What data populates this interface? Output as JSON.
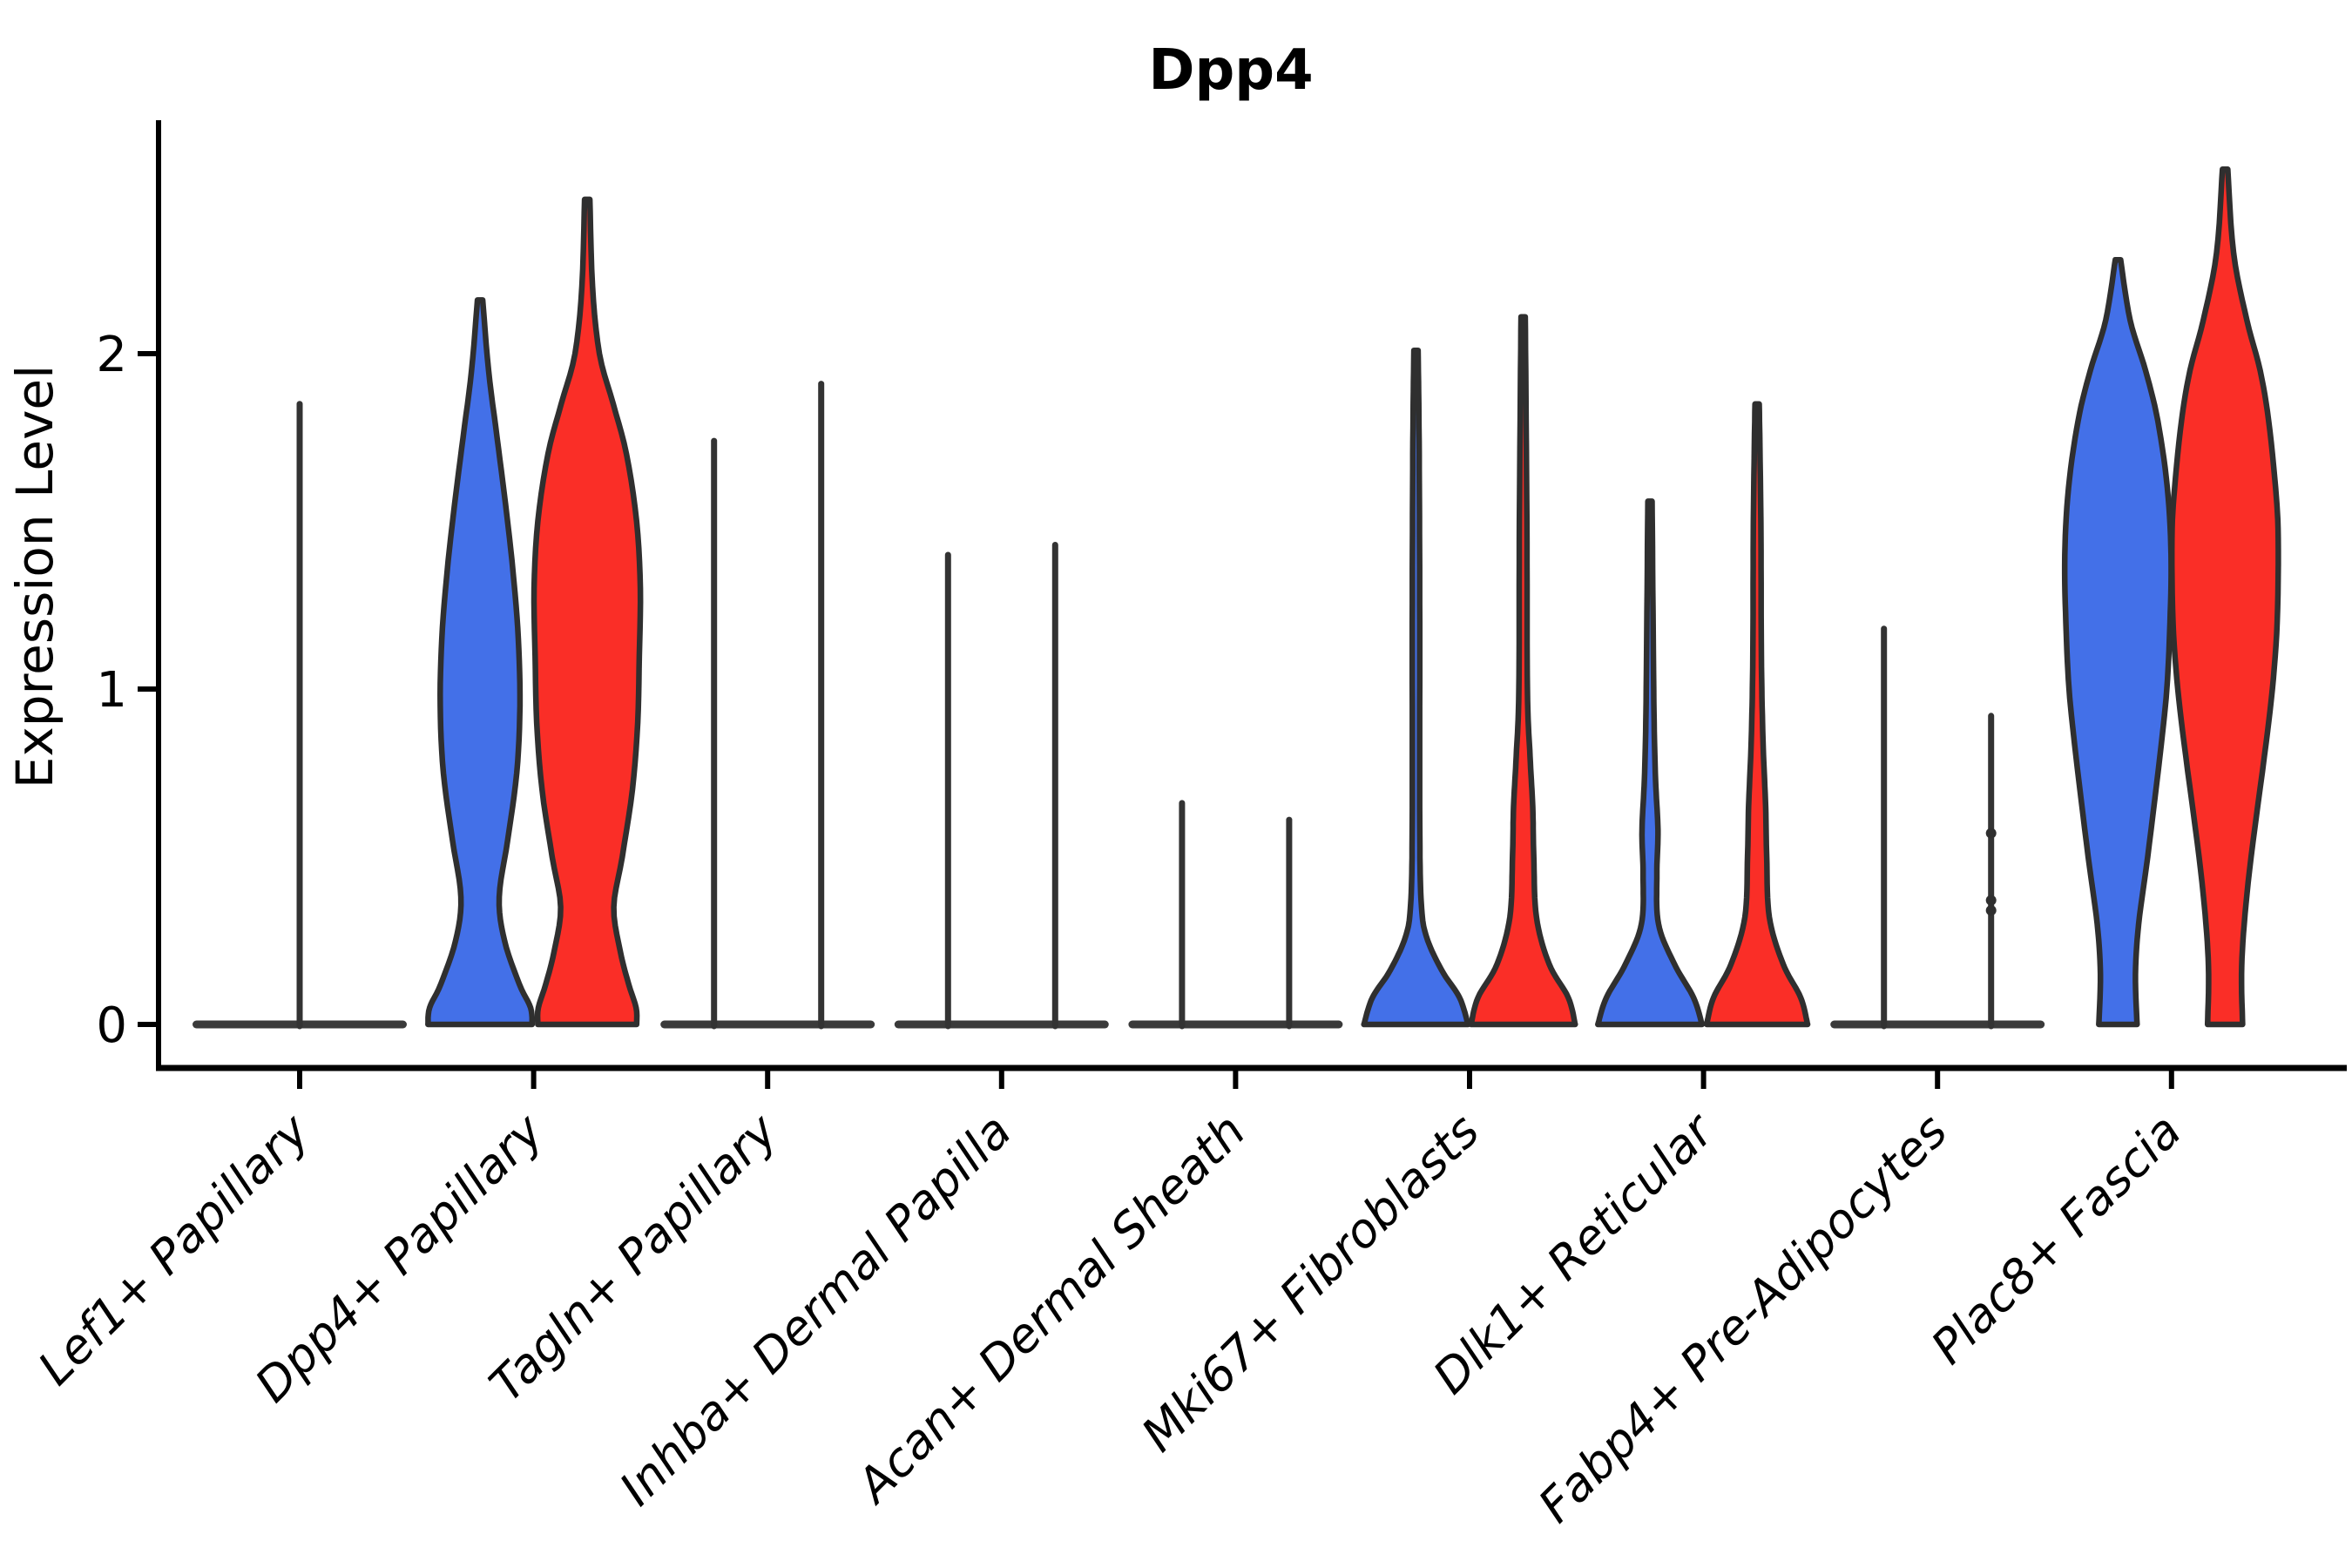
{
  "chart_data": {
    "type": "violin",
    "title": "Dpp4",
    "xlabel": "",
    "ylabel": "Expression Level",
    "ylim": [
      -0.13,
      2.7
    ],
    "grid": false,
    "legend": "none",
    "yticks": [
      {
        "value": 0,
        "label": "0"
      },
      {
        "value": 1,
        "label": "1"
      },
      {
        "value": 2,
        "label": "2"
      }
    ],
    "categories": [
      "Lef1+ Papillary",
      "Dpp4+ Papillary",
      "Tagln+ Papillary",
      "Inhba+ Dermal Papilla",
      "Acan+ Dermal Sheath",
      "Mki67+ Fibroblasts",
      "Dlk1+ Reticular",
      "Fabp4+ Pre-Adipocytes",
      "Plac8+ Fascia"
    ],
    "series_colors": {
      "blue": "#4370E8",
      "red": "#FA2E27",
      "outline": "#2F2F2F",
      "spike": "#333333",
      "pancake": "#3a3a3a"
    },
    "description": "Split violin plot of Dpp4 expression per fibroblast cluster; left violin of each pair is blue, right is red. Clusters with expression concentrated at 0 collapse to a flat line with a thin spike to the maximum expressing cell.",
    "groups": [
      {
        "category": "Lef1+ Papillary",
        "pancake": true,
        "violins": [
          {
            "color": "spike",
            "type": "spike",
            "position": "center",
            "max": 1.85
          }
        ]
      },
      {
        "category": "Dpp4+ Papillary",
        "pancake": false,
        "violins": [
          {
            "color": "blue",
            "type": "shaped",
            "position": "left",
            "max": 2.16,
            "profile": [
              [
                0,
                0.98
              ],
              [
                0.05,
                0.95
              ],
              [
                0.12,
                0.74
              ],
              [
                0.25,
                0.46
              ],
              [
                0.38,
                0.36
              ],
              [
                0.55,
                0.52
              ],
              [
                0.75,
                0.69
              ],
              [
                0.95,
                0.75
              ],
              [
                1.15,
                0.72
              ],
              [
                1.35,
                0.62
              ],
              [
                1.55,
                0.48
              ],
              [
                1.75,
                0.32
              ],
              [
                1.95,
                0.16
              ],
              [
                2.16,
                0.05
              ]
            ]
          },
          {
            "color": "red",
            "type": "shaped",
            "position": "right",
            "max": 2.46,
            "profile": [
              [
                0,
                0.93
              ],
              [
                0.05,
                0.92
              ],
              [
                0.12,
                0.78
              ],
              [
                0.22,
                0.62
              ],
              [
                0.35,
                0.5
              ],
              [
                0.5,
                0.66
              ],
              [
                0.7,
                0.85
              ],
              [
                0.9,
                0.95
              ],
              [
                1.1,
                0.98
              ],
              [
                1.3,
                1.0
              ],
              [
                1.5,
                0.93
              ],
              [
                1.7,
                0.74
              ],
              [
                1.85,
                0.49
              ],
              [
                2.0,
                0.23
              ],
              [
                2.2,
                0.1
              ],
              [
                2.46,
                0.05
              ]
            ]
          }
        ]
      },
      {
        "category": "Tagln+ Papillary",
        "pancake": true,
        "violins": [
          {
            "color": "spike",
            "type": "spike",
            "position": "left",
            "max": 1.74
          },
          {
            "color": "spike",
            "type": "spike",
            "position": "right",
            "max": 1.91
          }
        ]
      },
      {
        "category": "Inhba+ Dermal Papilla",
        "pancake": true,
        "violins": [
          {
            "color": "spike",
            "type": "spike",
            "position": "left",
            "max": 1.4
          },
          {
            "color": "spike",
            "type": "spike",
            "position": "right",
            "max": 1.43
          }
        ]
      },
      {
        "category": "Acan+ Dermal Sheath",
        "pancake": true,
        "violins": [
          {
            "color": "spike",
            "type": "spike",
            "position": "left",
            "max": 0.66
          },
          {
            "color": "spike",
            "type": "spike",
            "position": "right",
            "max": 0.61
          }
        ]
      },
      {
        "category": "Mki67+ Fibroblasts",
        "pancake": false,
        "violins": [
          {
            "color": "blue",
            "type": "shaped",
            "position": "left",
            "max": 2.01,
            "profile": [
              [
                0,
                0.98
              ],
              [
                0.08,
                0.82
              ],
              [
                0.16,
                0.49
              ],
              [
                0.26,
                0.2
              ],
              [
                0.36,
                0.1
              ],
              [
                0.6,
                0.07
              ],
              [
                1.2,
                0.07
              ],
              [
                1.7,
                0.06
              ],
              [
                2.01,
                0.04
              ]
            ]
          },
          {
            "color": "red",
            "type": "shaped",
            "position": "right",
            "max": 2.11,
            "profile": [
              [
                0,
                0.98
              ],
              [
                0.08,
                0.85
              ],
              [
                0.18,
                0.49
              ],
              [
                0.32,
                0.25
              ],
              [
                0.5,
                0.2
              ],
              [
                0.65,
                0.18
              ],
              [
                0.8,
                0.13
              ],
              [
                1.0,
                0.08
              ],
              [
                1.5,
                0.07
              ],
              [
                2.11,
                0.04
              ]
            ]
          }
        ]
      },
      {
        "category": "Dlk1+ Reticular",
        "pancake": false,
        "violins": [
          {
            "color": "blue",
            "type": "shaped",
            "position": "left",
            "max": 1.56,
            "profile": [
              [
                0,
                0.98
              ],
              [
                0.08,
                0.82
              ],
              [
                0.18,
                0.46
              ],
              [
                0.3,
                0.16
              ],
              [
                0.45,
                0.13
              ],
              [
                0.58,
                0.15
              ],
              [
                0.75,
                0.1
              ],
              [
                1.0,
                0.07
              ],
              [
                1.56,
                0.04
              ]
            ]
          },
          {
            "color": "red",
            "type": "shaped",
            "position": "right",
            "max": 1.85,
            "profile": [
              [
                0,
                0.95
              ],
              [
                0.08,
                0.82
              ],
              [
                0.18,
                0.49
              ],
              [
                0.32,
                0.23
              ],
              [
                0.5,
                0.18
              ],
              [
                0.65,
                0.16
              ],
              [
                0.85,
                0.11
              ],
              [
                1.1,
                0.08
              ],
              [
                1.5,
                0.07
              ],
              [
                1.85,
                0.04
              ]
            ]
          }
        ]
      },
      {
        "category": "Fabp4+ Pre-Adipocytes",
        "pancake": true,
        "violins": [
          {
            "color": "spike",
            "type": "spike",
            "position": "left",
            "max": 1.18
          },
          {
            "color": "spike",
            "type": "spike",
            "position": "right",
            "max": 0.92,
            "dots": [
              0.57,
              0.37,
              0.34
            ]
          }
        ]
      },
      {
        "category": "Plac8+ Fascia",
        "pancake": false,
        "violins": [
          {
            "color": "blue",
            "type": "shaped",
            "position": "left",
            "max": 2.28,
            "profile": [
              [
                0,
                0.36
              ],
              [
                0.15,
                0.33
              ],
              [
                0.3,
                0.39
              ],
              [
                0.5,
                0.56
              ],
              [
                0.8,
                0.79
              ],
              [
                1.0,
                0.92
              ],
              [
                1.2,
                0.98
              ],
              [
                1.4,
                1.0
              ],
              [
                1.6,
                0.93
              ],
              [
                1.8,
                0.75
              ],
              [
                1.95,
                0.52
              ],
              [
                2.1,
                0.23
              ],
              [
                2.28,
                0.05
              ]
            ]
          },
          {
            "color": "red",
            "type": "shaped",
            "position": "right",
            "max": 2.55,
            "profile": [
              [
                0,
                0.33
              ],
              [
                0.15,
                0.31
              ],
              [
                0.3,
                0.36
              ],
              [
                0.5,
                0.49
              ],
              [
                0.8,
                0.74
              ],
              [
                1.0,
                0.89
              ],
              [
                1.2,
                0.98
              ],
              [
                1.45,
                1.0
              ],
              [
                1.6,
                0.95
              ],
              [
                1.8,
                0.82
              ],
              [
                1.95,
                0.66
              ],
              [
                2.1,
                0.41
              ],
              [
                2.3,
                0.16
              ],
              [
                2.55,
                0.05
              ]
            ]
          }
        ]
      }
    ]
  }
}
